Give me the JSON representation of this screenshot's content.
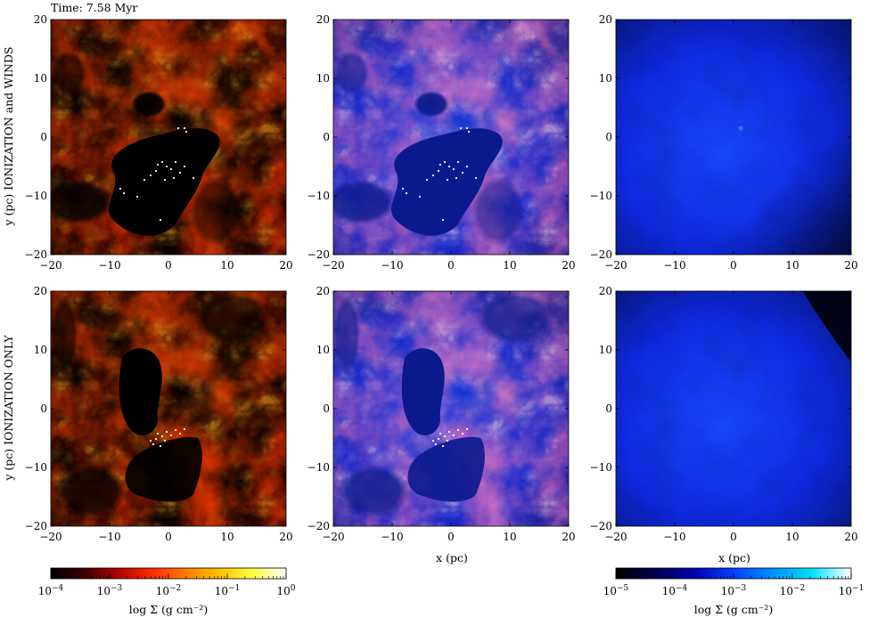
{
  "time_label": "Time: 7.58 Myr",
  "row_labels": [
    "y (pc) IONIZATION and WINDS",
    "y (pc) IONIZATION ONLY"
  ],
  "x_axis_label": "x (pc)",
  "ticks": [
    "−20",
    "−10",
    "0",
    "10",
    "20"
  ],
  "panel_kinds": [
    "molecular",
    "mixed",
    "ionized"
  ],
  "colorbars": [
    {
      "label": "log Σ (g cm⁻²)",
      "tick_labels": [
        {
          "base": "10",
          "exp": "−4"
        },
        {
          "base": "10",
          "exp": "−3"
        },
        {
          "base": "10",
          "exp": "−2"
        },
        {
          "base": "10",
          "exp": "−1"
        },
        {
          "base": "10",
          "exp": "0"
        }
      ],
      "colors": [
        "#000000",
        "#3a0000",
        "#b00000",
        "#ff2a00",
        "#ff7a00",
        "#ffc000",
        "#ffff40",
        "#ffffff"
      ]
    },
    {
      "label": "log Σ (g cm⁻²)",
      "tick_labels": [
        {
          "base": "10",
          "exp": "−5"
        },
        {
          "base": "10",
          "exp": "−4"
        },
        {
          "base": "10",
          "exp": "−3"
        },
        {
          "base": "10",
          "exp": "−2"
        },
        {
          "base": "10",
          "exp": "−1"
        }
      ],
      "colors": [
        "#000000",
        "#000050",
        "#0000b0",
        "#0040ff",
        "#0090ff",
        "#00e0ff",
        "#ffffff"
      ]
    }
  ],
  "chart_data": [
    {
      "type": "heatmap",
      "xlabel": "",
      "ylabel": "y (pc) IONIZATION and WINDS",
      "xlim": [
        -20,
        20
      ],
      "ylim": [
        -20,
        20
      ],
      "colorscale": "heat",
      "variant": "ion_winds"
    },
    {
      "type": "heatmap",
      "xlabel": "",
      "ylabel": "",
      "xlim": [
        -20,
        20
      ],
      "ylim": [
        -20,
        20
      ],
      "colorscale": "composite",
      "variant": "ion_winds"
    },
    {
      "type": "heatmap",
      "xlabel": "",
      "ylabel": "",
      "xlim": [
        -20,
        20
      ],
      "ylim": [
        -20,
        20
      ],
      "colorscale": "blue",
      "variant": "ion_winds"
    },
    {
      "type": "heatmap",
      "xlabel": "",
      "ylabel": "y (pc) IONIZATION ONLY",
      "xlim": [
        -20,
        20
      ],
      "ylim": [
        -20,
        20
      ],
      "colorscale": "heat",
      "variant": "ion_only"
    },
    {
      "type": "heatmap",
      "xlabel": "x (pc)",
      "ylabel": "",
      "xlim": [
        -20,
        20
      ],
      "ylim": [
        -20,
        20
      ],
      "colorscale": "composite",
      "variant": "ion_only"
    },
    {
      "type": "heatmap",
      "xlabel": "x (pc)",
      "ylabel": "",
      "xlim": [
        -20,
        20
      ],
      "ylim": [
        -20,
        20
      ],
      "colorscale": "blue",
      "variant": "ion_only"
    }
  ]
}
